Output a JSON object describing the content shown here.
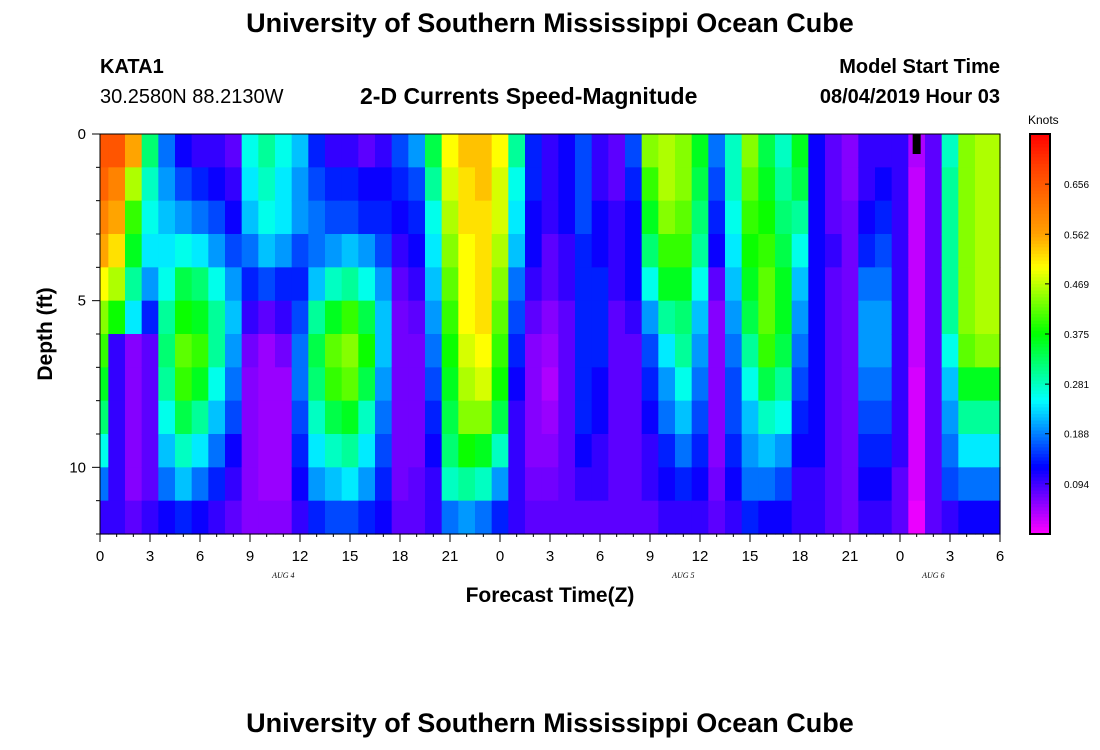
{
  "header": {
    "title": "University of Southern Mississippi Ocean Cube",
    "station": "KATA1",
    "coords": "30.2580N 88.2130W",
    "subtitle": "2-D Currents Speed-Magnitude",
    "start_label": "Model Start Time",
    "start_value": "08/04/2019 Hour 03"
  },
  "footer": {
    "title": "University of Southern Mississippi Ocean Cube"
  },
  "chart_data": {
    "type": "heatmap",
    "xlabel": "Forecast Time(Z)",
    "ylabel": "Depth (ft)",
    "x_tick_labels": [
      "0",
      "3",
      "6",
      "9",
      "12",
      "15",
      "18",
      "21",
      "0",
      "3",
      "6",
      "9",
      "12",
      "15",
      "18",
      "21",
      "0",
      "3",
      "6"
    ],
    "x_hours": [
      0,
      3,
      6,
      9,
      12,
      15,
      18,
      21,
      24,
      27,
      30,
      33,
      36,
      39,
      42,
      45,
      48,
      51,
      54
    ],
    "date_labels": [
      {
        "text": "AUG 4",
        "hour": 11
      },
      {
        "text": "AUG 5",
        "hour": 35
      },
      {
        "text": "AUG 6",
        "hour": 50
      }
    ],
    "xlim": [
      0,
      54
    ],
    "y_ticks": [
      0,
      5,
      10
    ],
    "ylim": [
      0,
      12
    ],
    "y_inverted": true,
    "colorbar": {
      "unit": "Knots",
      "min": 0,
      "max": 0.75,
      "tick_labels": [
        "0.656",
        "0.562",
        "0.469",
        "0.375",
        "0.281",
        "0.188",
        "0.094"
      ],
      "tick_values": [
        0.656,
        0.562,
        0.469,
        0.375,
        0.281,
        0.188,
        0.094
      ],
      "colors": [
        "#ff00ff",
        "#8000ff",
        "#0000ff",
        "#0080ff",
        "#00ffff",
        "#00ff80",
        "#00ff00",
        "#80ff00",
        "#ffff00",
        "#ffa000",
        "#ff7000",
        "#ff4000",
        "#ff0000"
      ]
    },
    "n_depth_bins": 12,
    "hour_step": 1,
    "grid": false,
    "missing_cells": [
      [
        49,
        0
      ]
    ],
    "time_keyframes": [
      {
        "h": 0,
        "p": [
          0.66,
          0.64,
          0.6,
          0.56,
          0.5,
          0.44,
          0.4,
          0.36,
          0.32,
          0.26,
          0.18,
          0.1
        ]
      },
      {
        "h": 1,
        "p": [
          0.66,
          0.6,
          0.56,
          0.52,
          0.46,
          0.38,
          0.1,
          0.1,
          0.1,
          0.1,
          0.1,
          0.1
        ]
      },
      {
        "h": 2,
        "p": [
          0.56,
          0.46,
          0.4,
          0.36,
          0.3,
          0.24,
          0.06,
          0.06,
          0.06,
          0.06,
          0.06,
          0.08
        ]
      },
      {
        "h": 3,
        "p": [
          0.32,
          0.28,
          0.26,
          0.24,
          0.2,
          0.14,
          0.08,
          0.08,
          0.08,
          0.08,
          0.08,
          0.1
        ]
      },
      {
        "h": 4,
        "p": [
          0.18,
          0.2,
          0.22,
          0.24,
          0.26,
          0.3,
          0.32,
          0.3,
          0.26,
          0.22,
          0.18,
          0.12
        ]
      },
      {
        "h": 5,
        "p": [
          0.12,
          0.16,
          0.2,
          0.26,
          0.34,
          0.38,
          0.42,
          0.4,
          0.34,
          0.28,
          0.22,
          0.14
        ]
      },
      {
        "h": 6,
        "p": [
          0.1,
          0.14,
          0.18,
          0.24,
          0.32,
          0.36,
          0.4,
          0.36,
          0.3,
          0.24,
          0.18,
          0.12
        ]
      },
      {
        "h": 7,
        "p": [
          0.1,
          0.12,
          0.16,
          0.2,
          0.26,
          0.3,
          0.3,
          0.26,
          0.22,
          0.18,
          0.14,
          0.1
        ]
      },
      {
        "h": 8,
        "p": [
          0.08,
          0.1,
          0.12,
          0.16,
          0.2,
          0.22,
          0.2,
          0.18,
          0.16,
          0.12,
          0.1,
          0.08
        ]
      },
      {
        "h": 9,
        "p": [
          0.26,
          0.24,
          0.22,
          0.18,
          0.14,
          0.1,
          0.07,
          0.06,
          0.06,
          0.06,
          0.06,
          0.06
        ]
      },
      {
        "h": 10,
        "p": [
          0.3,
          0.28,
          0.26,
          0.22,
          0.16,
          0.08,
          0.05,
          0.05,
          0.05,
          0.05,
          0.05,
          0.06
        ]
      },
      {
        "h": 11,
        "p": [
          0.26,
          0.24,
          0.24,
          0.2,
          0.14,
          0.1,
          0.07,
          0.05,
          0.05,
          0.05,
          0.05,
          0.06
        ]
      },
      {
        "h": 12,
        "p": [
          0.22,
          0.2,
          0.2,
          0.16,
          0.14,
          0.16,
          0.18,
          0.18,
          0.16,
          0.14,
          0.12,
          0.1
        ]
      },
      {
        "h": 13,
        "p": [
          0.14,
          0.16,
          0.18,
          0.18,
          0.22,
          0.3,
          0.34,
          0.32,
          0.28,
          0.24,
          0.2,
          0.14
        ]
      },
      {
        "h": 14,
        "p": [
          0.1,
          0.14,
          0.16,
          0.2,
          0.28,
          0.36,
          0.42,
          0.4,
          0.34,
          0.28,
          0.22,
          0.16
        ]
      },
      {
        "h": 15,
        "p": [
          0.1,
          0.14,
          0.16,
          0.22,
          0.3,
          0.4,
          0.44,
          0.42,
          0.36,
          0.3,
          0.24,
          0.16
        ]
      },
      {
        "h": 16,
        "p": [
          0.08,
          0.12,
          0.14,
          0.2,
          0.26,
          0.34,
          0.38,
          0.34,
          0.28,
          0.24,
          0.2,
          0.14
        ]
      },
      {
        "h": 17,
        "p": [
          0.1,
          0.12,
          0.14,
          0.16,
          0.2,
          0.22,
          0.22,
          0.2,
          0.18,
          0.16,
          0.14,
          0.12
        ]
      },
      {
        "h": 18,
        "p": [
          0.16,
          0.14,
          0.12,
          0.1,
          0.08,
          0.07,
          0.07,
          0.07,
          0.07,
          0.07,
          0.07,
          0.08
        ]
      },
      {
        "h": 19,
        "p": [
          0.2,
          0.16,
          0.14,
          0.12,
          0.1,
          0.08,
          0.07,
          0.07,
          0.07,
          0.07,
          0.08,
          0.08
        ]
      },
      {
        "h": 20,
        "p": [
          0.34,
          0.3,
          0.26,
          0.24,
          0.22,
          0.2,
          0.18,
          0.16,
          0.14,
          0.12,
          0.1,
          0.1
        ]
      },
      {
        "h": 21,
        "p": [
          0.5,
          0.48,
          0.46,
          0.44,
          0.42,
          0.4,
          0.38,
          0.36,
          0.34,
          0.32,
          0.28,
          0.18
        ]
      },
      {
        "h": 22,
        "p": [
          0.54,
          0.52,
          0.52,
          0.5,
          0.5,
          0.5,
          0.48,
          0.46,
          0.44,
          0.38,
          0.3,
          0.2
        ]
      },
      {
        "h": 23,
        "p": [
          0.54,
          0.54,
          0.52,
          0.52,
          0.52,
          0.52,
          0.5,
          0.48,
          0.44,
          0.36,
          0.28,
          0.18
        ]
      },
      {
        "h": 24,
        "p": [
          0.5,
          0.48,
          0.48,
          0.46,
          0.44,
          0.42,
          0.4,
          0.38,
          0.34,
          0.28,
          0.2,
          0.14
        ]
      },
      {
        "h": 25,
        "p": [
          0.3,
          0.26,
          0.24,
          0.22,
          0.18,
          0.16,
          0.14,
          0.12,
          0.1,
          0.1,
          0.1,
          0.1
        ]
      },
      {
        "h": 26,
        "p": [
          0.14,
          0.14,
          0.12,
          0.12,
          0.1,
          0.08,
          0.06,
          0.06,
          0.06,
          0.06,
          0.07,
          0.08
        ]
      },
      {
        "h": 27,
        "p": [
          0.1,
          0.1,
          0.1,
          0.08,
          0.08,
          0.06,
          0.05,
          0.04,
          0.05,
          0.06,
          0.07,
          0.08
        ]
      },
      {
        "h": 28,
        "p": [
          0.12,
          0.12,
          0.12,
          0.1,
          0.1,
          0.08,
          0.08,
          0.08,
          0.08,
          0.08,
          0.08,
          0.08
        ]
      },
      {
        "h": 29,
        "p": [
          0.16,
          0.16,
          0.16,
          0.14,
          0.14,
          0.14,
          0.14,
          0.14,
          0.14,
          0.12,
          0.1,
          0.08
        ]
      },
      {
        "h": 30,
        "p": [
          0.1,
          0.1,
          0.12,
          0.12,
          0.14,
          0.14,
          0.14,
          0.12,
          0.12,
          0.1,
          0.1,
          0.08
        ]
      },
      {
        "h": 31,
        "p": [
          0.08,
          0.08,
          0.1,
          0.1,
          0.1,
          0.08,
          0.08,
          0.08,
          0.08,
          0.08,
          0.08,
          0.08
        ]
      },
      {
        "h": 32,
        "p": [
          0.16,
          0.14,
          0.12,
          0.12,
          0.12,
          0.1,
          0.08,
          0.08,
          0.08,
          0.08,
          0.08,
          0.08
        ]
      },
      {
        "h": 33,
        "p": [
          0.44,
          0.4,
          0.36,
          0.32,
          0.26,
          0.2,
          0.16,
          0.14,
          0.12,
          0.1,
          0.1,
          0.08
        ]
      },
      {
        "h": 34,
        "p": [
          0.46,
          0.46,
          0.44,
          0.4,
          0.36,
          0.3,
          0.24,
          0.2,
          0.18,
          0.14,
          0.12,
          0.1
        ]
      },
      {
        "h": 35,
        "p": [
          0.44,
          0.44,
          0.42,
          0.4,
          0.36,
          0.32,
          0.3,
          0.26,
          0.22,
          0.18,
          0.14,
          0.1
        ]
      },
      {
        "h": 36,
        "p": [
          0.36,
          0.34,
          0.32,
          0.3,
          0.26,
          0.22,
          0.2,
          0.18,
          0.16,
          0.14,
          0.12,
          0.1
        ]
      },
      {
        "h": 37,
        "p": [
          0.18,
          0.16,
          0.14,
          0.12,
          0.08,
          0.06,
          0.06,
          0.06,
          0.06,
          0.06,
          0.07,
          0.08
        ]
      },
      {
        "h": 38,
        "p": [
          0.28,
          0.28,
          0.26,
          0.24,
          0.22,
          0.2,
          0.18,
          0.16,
          0.16,
          0.14,
          0.12,
          0.1
        ]
      },
      {
        "h": 39,
        "p": [
          0.44,
          0.42,
          0.4,
          0.38,
          0.36,
          0.34,
          0.3,
          0.26,
          0.22,
          0.2,
          0.18,
          0.14
        ]
      },
      {
        "h": 40,
        "p": [
          0.34,
          0.36,
          0.38,
          0.4,
          0.42,
          0.42,
          0.4,
          0.34,
          0.28,
          0.22,
          0.18,
          0.12
        ]
      },
      {
        "h": 41,
        "p": [
          0.28,
          0.3,
          0.32,
          0.34,
          0.36,
          0.36,
          0.34,
          0.3,
          0.26,
          0.2,
          0.16,
          0.12
        ]
      },
      {
        "h": 42,
        "p": [
          0.36,
          0.34,
          0.3,
          0.26,
          0.22,
          0.2,
          0.18,
          0.16,
          0.14,
          0.12,
          0.1,
          0.1
        ]
      },
      {
        "h": 43,
        "p": [
          0.12,
          0.12,
          0.12,
          0.12,
          0.12,
          0.12,
          0.12,
          0.12,
          0.12,
          0.12,
          0.1,
          0.1
        ]
      },
      {
        "h": 44,
        "p": [
          0.08,
          0.08,
          0.08,
          0.1,
          0.08,
          0.08,
          0.08,
          0.08,
          0.08,
          0.08,
          0.08,
          0.08
        ]
      },
      {
        "h": 45,
        "p": [
          0.06,
          0.06,
          0.07,
          0.07,
          0.07,
          0.07,
          0.07,
          0.07,
          0.07,
          0.07,
          0.07,
          0.07
        ]
      },
      {
        "h": 46,
        "p": [
          0.1,
          0.1,
          0.12,
          0.14,
          0.18,
          0.2,
          0.2,
          0.18,
          0.16,
          0.14,
          0.12,
          0.1
        ]
      },
      {
        "h": 47,
        "p": [
          0.1,
          0.12,
          0.14,
          0.16,
          0.18,
          0.2,
          0.2,
          0.18,
          0.16,
          0.14,
          0.12,
          0.1
        ]
      },
      {
        "h": 48,
        "p": [
          0.1,
          0.1,
          0.1,
          0.1,
          0.1,
          0.1,
          0.1,
          0.1,
          0.1,
          0.1,
          0.08,
          0.08
        ]
      },
      {
        "h": 49,
        "p": [
          0.04,
          0.03,
          0.03,
          0.03,
          0.03,
          0.03,
          0.03,
          0.02,
          0.02,
          0.02,
          0.02,
          0.01
        ]
      },
      {
        "h": 50,
        "p": [
          0.08,
          0.08,
          0.08,
          0.08,
          0.08,
          0.08,
          0.08,
          0.08,
          0.08,
          0.08,
          0.08,
          0.08
        ]
      },
      {
        "h": 51,
        "p": [
          0.28,
          0.3,
          0.3,
          0.3,
          0.3,
          0.3,
          0.26,
          0.22,
          0.2,
          0.18,
          0.16,
          0.1
        ]
      },
      {
        "h": 52,
        "p": [
          0.44,
          0.44,
          0.44,
          0.44,
          0.44,
          0.44,
          0.42,
          0.36,
          0.3,
          0.24,
          0.18,
          0.12
        ]
      },
      {
        "h": 53,
        "p": [
          0.46,
          0.46,
          0.46,
          0.46,
          0.46,
          0.46,
          0.44,
          0.36,
          0.3,
          0.24,
          0.18,
          0.12
        ]
      },
      {
        "h": 54,
        "p": [
          0.46,
          0.46,
          0.46,
          0.46,
          0.46,
          0.46,
          0.44,
          0.36,
          0.3,
          0.24,
          0.18,
          0.12
        ]
      }
    ]
  }
}
